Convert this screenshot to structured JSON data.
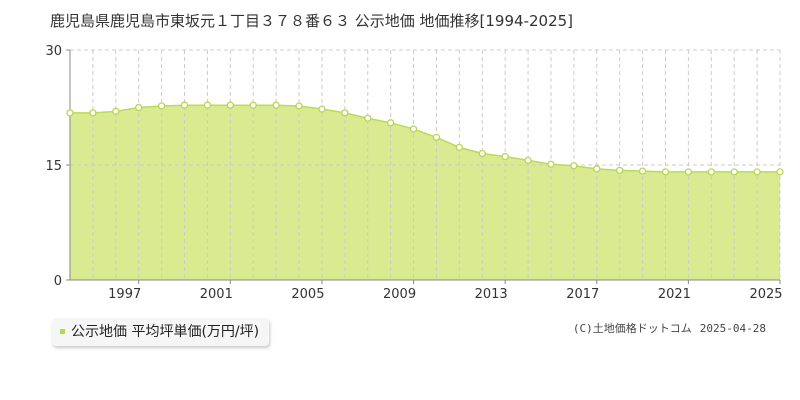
{
  "header": {
    "title": "鹿児島県鹿児島市東坂元１丁目３７８番６３ 公示地価 地価推移[1994-2025]"
  },
  "legend": {
    "label": "公示地価 平均坪単価(万円/坪)"
  },
  "footer": {
    "credit": "(C)土地価格ドットコム",
    "date": "2025-04-28"
  },
  "colors": {
    "area_fill": "#d9ea91",
    "line": "#bcd95a",
    "marker_fill": "#ffffff",
    "marker_stroke": "#b6d84e",
    "grid": "#cccccc",
    "axis": "#888888"
  },
  "chart_data": {
    "type": "area",
    "x": [
      1994,
      1995,
      1996,
      1997,
      1998,
      1999,
      2000,
      2001,
      2002,
      2003,
      2004,
      2005,
      2006,
      2007,
      2008,
      2009,
      2010,
      2011,
      2012,
      2013,
      2014,
      2015,
      2016,
      2017,
      2018,
      2019,
      2020,
      2021,
      2022,
      2023,
      2024,
      2025
    ],
    "series": [
      {
        "values": [
          21.8,
          21.8,
          22.0,
          22.5,
          22.7,
          22.8,
          22.8,
          22.8,
          22.8,
          22.8,
          22.7,
          22.3,
          21.8,
          21.1,
          20.5,
          19.7,
          18.6,
          17.3,
          16.5,
          16.1,
          15.6,
          15.1,
          14.9,
          14.5,
          14.3,
          14.2,
          14.1,
          14.1,
          14.1,
          14.1,
          14.1,
          14.1
        ]
      }
    ],
    "xlim": [
      1994,
      2025
    ],
    "ylim": [
      0,
      30
    ],
    "yticks": [
      0,
      15,
      30
    ],
    "xticks": [
      1997,
      2001,
      2005,
      2009,
      2013,
      2017,
      2021,
      2025
    ],
    "grid": true,
    "legend_position": "bottom-left"
  }
}
